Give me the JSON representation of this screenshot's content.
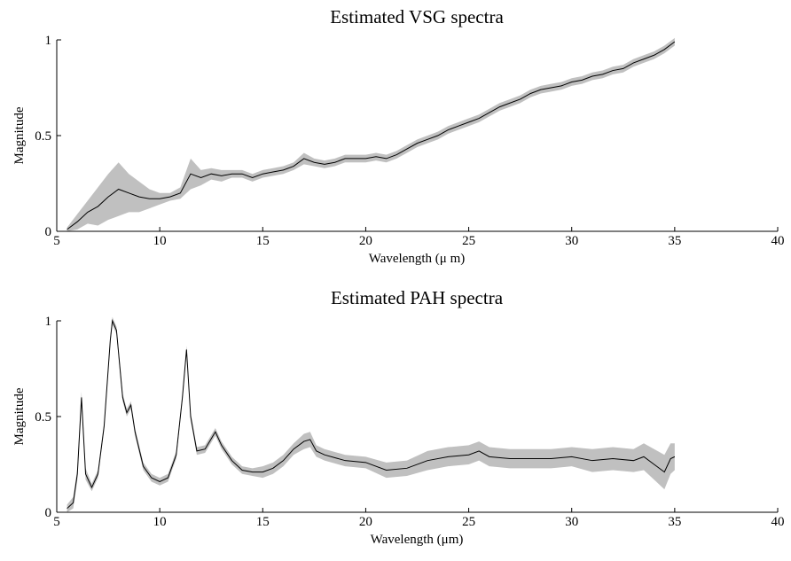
{
  "chart_data": [
    {
      "type": "line",
      "title": "Estimated VSG spectra",
      "xlabel": "Wavelength (μ m)",
      "ylabel": "Magnitude",
      "x": [
        5.5,
        6,
        6.5,
        7,
        7.5,
        8,
        8.5,
        9,
        9.5,
        10,
        10.5,
        11,
        11.5,
        12,
        12.5,
        13,
        13.5,
        14,
        14.5,
        15,
        15.5,
        16,
        16.5,
        17,
        17.5,
        18,
        18.5,
        19,
        19.5,
        20,
        20.5,
        21,
        21.5,
        22,
        22.5,
        23,
        23.5,
        24,
        24.5,
        25,
        25.5,
        26,
        26.5,
        27,
        27.5,
        28,
        28.5,
        29,
        29.5,
        30,
        30.5,
        31,
        31.5,
        32,
        32.5,
        33,
        33.5,
        34,
        34.5,
        35
      ],
      "series": [
        {
          "color": "#000000",
          "band_color": "#c0c0c0",
          "values": [
            0.01,
            0.05,
            0.1,
            0.13,
            0.18,
            0.22,
            0.2,
            0.18,
            0.17,
            0.17,
            0.18,
            0.2,
            0.3,
            0.28,
            0.3,
            0.29,
            0.3,
            0.3,
            0.28,
            0.3,
            0.31,
            0.32,
            0.34,
            0.38,
            0.36,
            0.35,
            0.36,
            0.38,
            0.38,
            0.38,
            0.39,
            0.38,
            0.4,
            0.43,
            0.46,
            0.48,
            0.5,
            0.53,
            0.55,
            0.57,
            0.59,
            0.62,
            0.65,
            0.67,
            0.69,
            0.72,
            0.74,
            0.75,
            0.76,
            0.78,
            0.79,
            0.81,
            0.82,
            0.84,
            0.85,
            0.88,
            0.9,
            0.92,
            0.95,
            0.99
          ],
          "spread": [
            0.01,
            0.04,
            0.06,
            0.1,
            0.12,
            0.14,
            0.1,
            0.08,
            0.05,
            0.03,
            0.02,
            0.03,
            0.08,
            0.04,
            0.03,
            0.03,
            0.02,
            0.02,
            0.02,
            0.02,
            0.02,
            0.02,
            0.02,
            0.03,
            0.02,
            0.02,
            0.02,
            0.02,
            0.02,
            0.02,
            0.02,
            0.02,
            0.02,
            0.02,
            0.02,
            0.02,
            0.02,
            0.02,
            0.02,
            0.02,
            0.02,
            0.02,
            0.02,
            0.02,
            0.02,
            0.02,
            0.02,
            0.02,
            0.02,
            0.02,
            0.02,
            0.02,
            0.02,
            0.02,
            0.02,
            0.02,
            0.02,
            0.02,
            0.02,
            0.02
          ]
        }
      ],
      "xlim": [
        5,
        40
      ],
      "xticks": [
        5,
        10,
        15,
        20,
        25,
        30,
        35,
        40
      ],
      "ylim": [
        0,
        1
      ],
      "yticks": [
        0,
        0.5,
        1
      ]
    },
    {
      "type": "line",
      "title": "Estimated PAH spectra",
      "xlabel": "Wavelength (μm)",
      "ylabel": "Magnitude",
      "x": [
        5.5,
        5.8,
        6.0,
        6.2,
        6.4,
        6.7,
        7.0,
        7.3,
        7.6,
        7.7,
        7.9,
        8.2,
        8.4,
        8.6,
        8.8,
        9.2,
        9.6,
        10,
        10.4,
        10.8,
        11.1,
        11.3,
        11.5,
        11.8,
        12.2,
        12.7,
        13,
        13.5,
        14,
        14.5,
        15,
        15.5,
        16,
        16.5,
        17,
        17.3,
        17.6,
        18,
        19,
        20,
        21,
        22,
        23,
        24,
        25,
        25.5,
        26,
        27,
        28,
        29,
        30,
        31,
        32,
        33,
        33.5,
        34,
        34.5,
        34.8,
        35
      ],
      "series": [
        {
          "color": "#000000",
          "band_color": "#c0c0c0",
          "values": [
            0.02,
            0.05,
            0.2,
            0.6,
            0.2,
            0.13,
            0.2,
            0.45,
            0.9,
            1.0,
            0.95,
            0.6,
            0.52,
            0.56,
            0.42,
            0.24,
            0.18,
            0.16,
            0.18,
            0.3,
            0.6,
            0.85,
            0.5,
            0.32,
            0.33,
            0.42,
            0.35,
            0.27,
            0.22,
            0.21,
            0.21,
            0.23,
            0.27,
            0.33,
            0.37,
            0.38,
            0.32,
            0.3,
            0.27,
            0.26,
            0.22,
            0.23,
            0.27,
            0.29,
            0.3,
            0.32,
            0.29,
            0.28,
            0.28,
            0.28,
            0.29,
            0.27,
            0.28,
            0.27,
            0.29,
            0.25,
            0.21,
            0.28,
            0.29
          ],
          "spread": [
            0.02,
            0.03,
            0.03,
            0.03,
            0.03,
            0.02,
            0.02,
            0.02,
            0.02,
            0.02,
            0.02,
            0.02,
            0.02,
            0.02,
            0.02,
            0.02,
            0.02,
            0.02,
            0.02,
            0.02,
            0.02,
            0.02,
            0.02,
            0.02,
            0.02,
            0.02,
            0.02,
            0.02,
            0.02,
            0.02,
            0.03,
            0.03,
            0.03,
            0.03,
            0.04,
            0.04,
            0.03,
            0.03,
            0.03,
            0.03,
            0.04,
            0.04,
            0.05,
            0.05,
            0.05,
            0.05,
            0.05,
            0.05,
            0.05,
            0.05,
            0.05,
            0.06,
            0.06,
            0.06,
            0.07,
            0.08,
            0.09,
            0.08,
            0.07
          ]
        }
      ],
      "xlim": [
        5,
        40
      ],
      "xticks": [
        5,
        10,
        15,
        20,
        25,
        30,
        35,
        40
      ],
      "ylim": [
        0,
        1
      ],
      "yticks": [
        0,
        0.5,
        1
      ]
    }
  ]
}
